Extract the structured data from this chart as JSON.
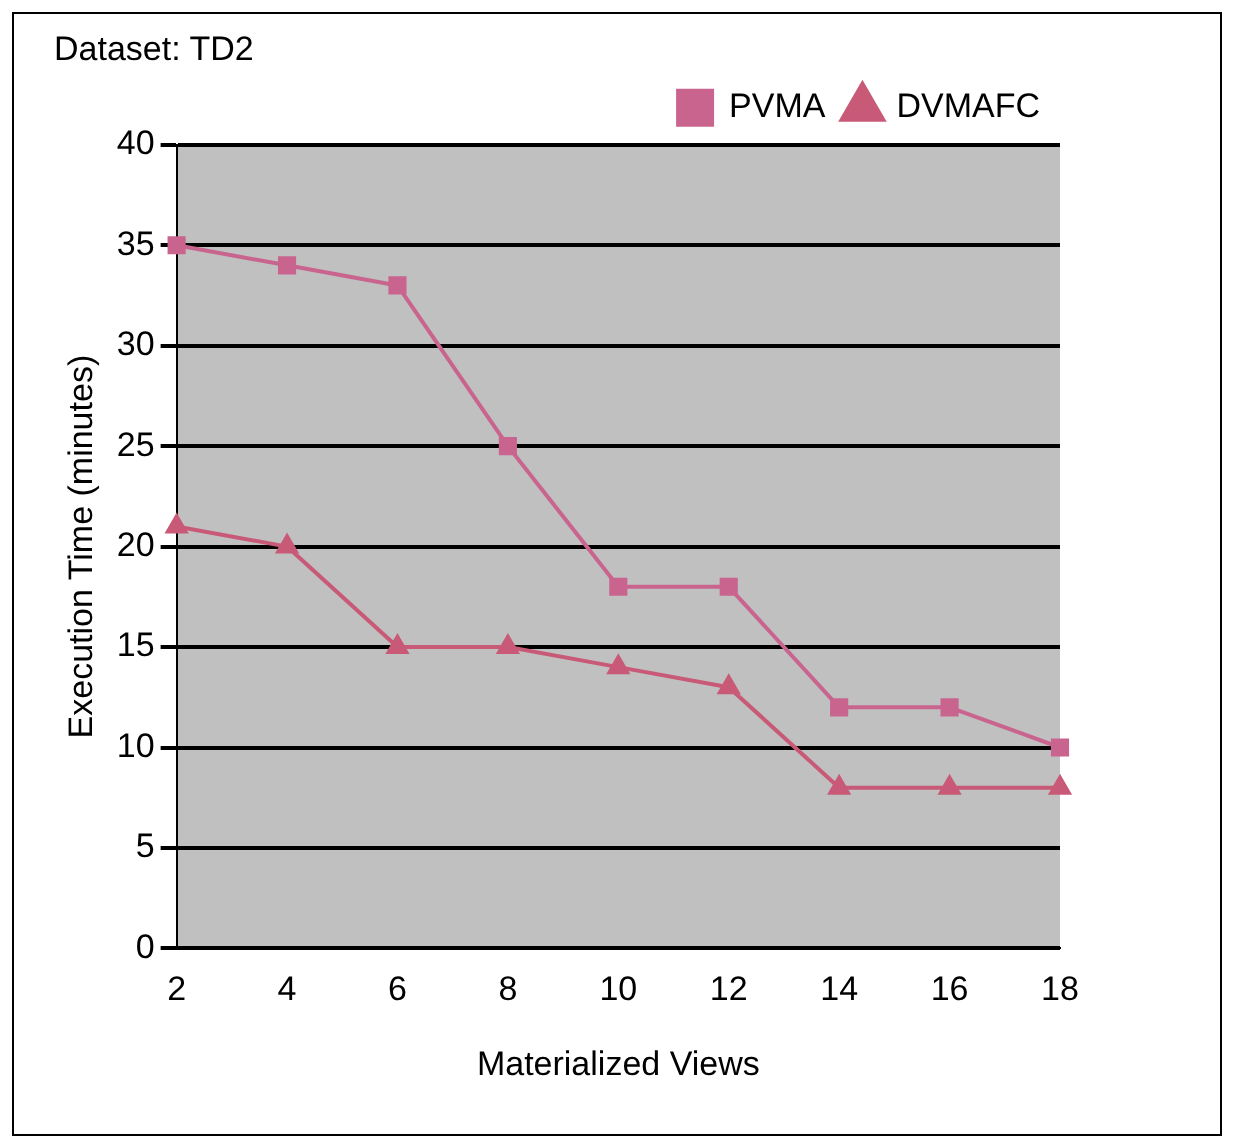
{
  "chart_data": {
    "type": "line",
    "title": "Dataset: TD2",
    "xlabel": "Materialized Views",
    "ylabel": "Execution Time (minutes)",
    "categories": [
      "2",
      "4",
      "6",
      "8",
      "10",
      "12",
      "14",
      "16",
      "18"
    ],
    "series": [
      {
        "name": "PVMA",
        "color": "#c9648f",
        "marker": "square",
        "values": [
          35,
          34,
          33,
          25,
          18,
          18,
          12,
          12,
          10
        ]
      },
      {
        "name": "DVMAFC",
        "color": "#c85a78",
        "marker": "triangle",
        "values": [
          21,
          20,
          15,
          15,
          14,
          13,
          8,
          8,
          8
        ]
      }
    ],
    "ylim": [
      0,
      40
    ],
    "yticks": [
      0,
      5,
      10,
      15,
      20,
      25,
      30,
      35,
      40
    ],
    "grid": "y",
    "legend": "top right",
    "line_style": "solid"
  }
}
